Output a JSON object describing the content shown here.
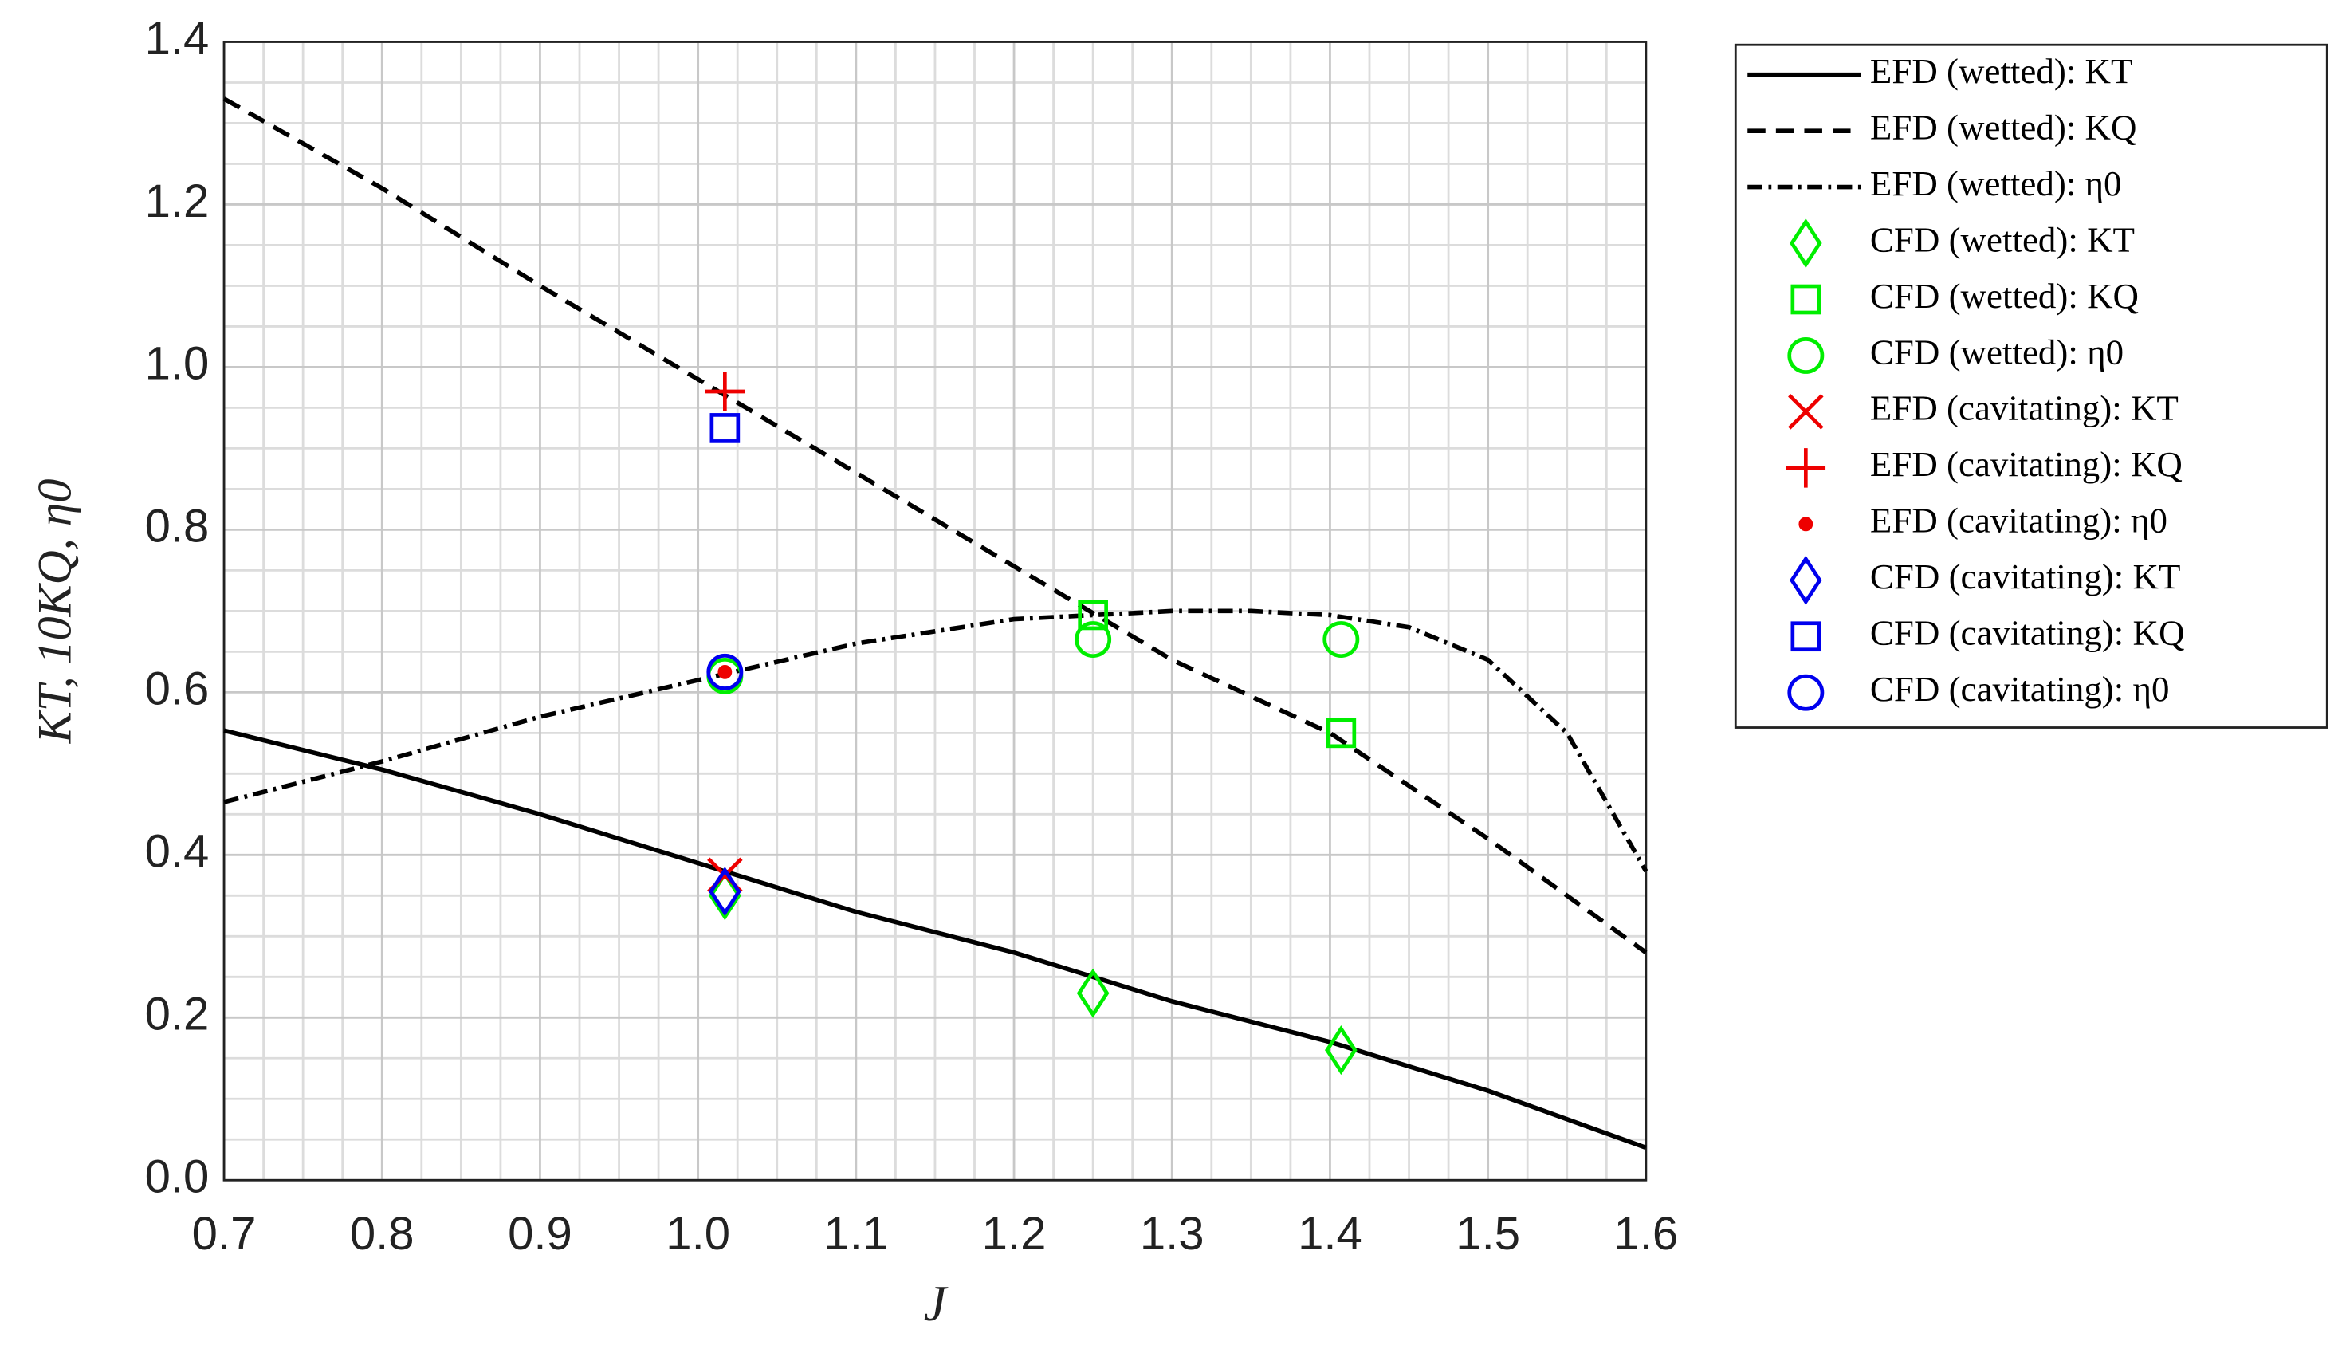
{
  "chart_data": {
    "type": "line",
    "xlabel": "J",
    "ylabel": "KT, 10KQ, η0",
    "xlim": [
      0.7,
      1.6
    ],
    "ylim": [
      0,
      1.4
    ],
    "xticks": [
      0.7,
      0.8,
      0.9,
      {
        "value": 1.0,
        "label": "1.0"
      },
      1.1,
      1.2,
      1.3,
      1.4,
      1.5,
      1.6
    ],
    "yticks": [
      {
        "value": 0,
        "label": "0.0"
      },
      0.2,
      0.4,
      0.6,
      0.8,
      {
        "value": 1.0,
        "label": "1.0"
      },
      1.2,
      1.4
    ],
    "grid": true,
    "minor_grid": true,
    "legend": "outside right",
    "series": [
      {
        "name": "EFD (wetted): KT",
        "color": "#000000",
        "style": "solid",
        "x": [
          0.7,
          0.8,
          0.9,
          1.0,
          1.1,
          1.2,
          1.3,
          1.4,
          1.5,
          1.6
        ],
        "values": [
          0.553,
          0.505,
          0.45,
          0.39,
          0.33,
          0.28,
          0.22,
          0.17,
          0.11,
          0.04
        ]
      },
      {
        "name": "EFD (wetted): KQ",
        "color": "#000000",
        "style": "dashed",
        "x": [
          0.7,
          0.8,
          0.9,
          1.0,
          1.1,
          1.2,
          1.3,
          1.4,
          1.5,
          1.6
        ],
        "values": [
          1.33,
          1.22,
          1.1,
          0.985,
          0.87,
          0.755,
          0.64,
          0.55,
          0.42,
          0.28
        ]
      },
      {
        "name": "EFD (wetted): η0",
        "color": "#000000",
        "style": "dashdot",
        "x": [
          0.7,
          0.8,
          0.9,
          1.0,
          1.1,
          1.2,
          1.3,
          1.35,
          1.4,
          1.45,
          1.5,
          1.55,
          1.6
        ],
        "values": [
          0.465,
          0.515,
          0.57,
          0.615,
          0.66,
          0.69,
          0.7,
          0.7,
          0.695,
          0.68,
          0.64,
          0.55,
          0.38
        ]
      },
      {
        "name": "CFD (wetted): KT",
        "color": "#00ee00",
        "marker": "diamond",
        "x": [
          1.017,
          1.25,
          1.407
        ],
        "values": [
          0.35,
          0.23,
          0.16
        ]
      },
      {
        "name": "CFD (wetted): KQ",
        "color": "#00ee00",
        "marker": "square",
        "x": [
          1.25,
          1.407
        ],
        "values": [
          0.695,
          0.55
        ]
      },
      {
        "name": "CFD (wetted): η0",
        "color": "#00ee00",
        "marker": "circle",
        "x": [
          1.017,
          1.25,
          1.407
        ],
        "values": [
          0.62,
          0.665,
          0.665
        ]
      },
      {
        "name": "EFD (cavitating): KT",
        "color": "#ee0000",
        "marker": "x",
        "x": [
          1.017
        ],
        "values": [
          0.375
        ]
      },
      {
        "name": "EFD (cavitating): KQ",
        "color": "#ee0000",
        "marker": "plus",
        "x": [
          1.017
        ],
        "values": [
          0.97
        ]
      },
      {
        "name": "EFD (cavitating): η0",
        "color": "#ee0000",
        "marker": "dot",
        "x": [
          1.017
        ],
        "values": [
          0.625
        ]
      },
      {
        "name": "CFD (cavitating): KT",
        "color": "#0000ee",
        "marker": "diamond",
        "x": [
          1.017
        ],
        "values": [
          0.355
        ]
      },
      {
        "name": "CFD (cavitating): KQ",
        "color": "#0000ee",
        "marker": "square",
        "x": [
          1.017
        ],
        "values": [
          0.925
        ]
      },
      {
        "name": "CFD (cavitating): η0",
        "color": "#0000ee",
        "marker": "circle",
        "x": [
          1.017
        ],
        "values": [
          0.625
        ]
      }
    ]
  }
}
